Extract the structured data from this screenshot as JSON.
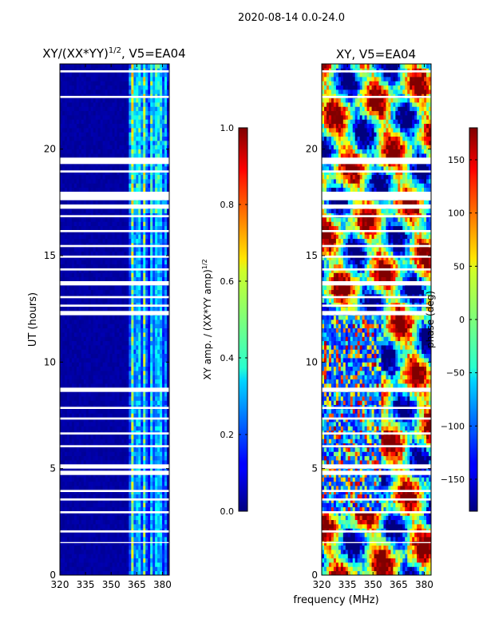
{
  "figure": {
    "suptitle": "2020-08-14 0.0-24.0",
    "xlabel": "frequency (MHz)",
    "ylabel": "UT (hours)"
  },
  "chart_data": [
    {
      "type": "heatmap",
      "title_main": "XY/(XX*YY)",
      "title_exp": "1/2",
      "title_tail": ", V5=EA04",
      "xlim": [
        320,
        384
      ],
      "ylim": [
        0,
        24
      ],
      "xticks": [
        320,
        335,
        350,
        365,
        380
      ],
      "yticks": [
        0,
        5,
        10,
        15,
        20
      ],
      "colormap": "jet",
      "colorbar": {
        "range": [
          0.0,
          1.0
        ],
        "ticks": [
          "0.0",
          "0.2",
          "0.4",
          "0.6",
          "0.8",
          "1.0"
        ],
        "tick_values": [
          0.0,
          0.2,
          0.4,
          0.6,
          0.8,
          1.0
        ],
        "label_main": "XY amp. / (XX*YY amp)",
        "label_exp": "1/2"
      },
      "flagged_hours": [
        [
          19.3,
          19.6
        ],
        [
          18.9,
          19.0
        ],
        [
          17.6,
          18.0
        ],
        [
          17.2,
          17.4
        ],
        [
          16.8,
          16.9
        ],
        [
          22.4,
          22.5
        ],
        [
          23.6,
          23.7
        ],
        [
          16.1,
          16.2
        ],
        [
          15.4,
          15.5
        ],
        [
          14.9,
          15.0
        ],
        [
          14.3,
          14.4
        ],
        [
          13.6,
          13.8
        ],
        [
          13.0,
          13.1
        ],
        [
          12.6,
          12.7
        ],
        [
          12.2,
          12.4
        ],
        [
          8.6,
          8.8
        ],
        [
          7.8,
          7.9
        ],
        [
          7.3,
          7.4
        ],
        [
          6.6,
          6.7
        ],
        [
          6.0,
          6.1
        ],
        [
          5.0,
          5.2
        ],
        [
          4.7,
          4.9
        ],
        [
          3.9,
          4.0
        ],
        [
          3.5,
          3.6
        ],
        [
          2.9,
          3.0
        ],
        [
          2.0,
          2.1
        ],
        [
          1.5,
          1.55
        ]
      ],
      "background_level": 0.02,
      "bright_channels_mhz": [
        {
          "f": 362.5,
          "w": 1.4,
          "amp": 0.55
        },
        {
          "f": 366.0,
          "w": 1.2,
          "amp": 0.45
        },
        {
          "f": 369.5,
          "w": 1.3,
          "amp": 0.5
        },
        {
          "f": 373.5,
          "w": 1.1,
          "amp": 0.4
        },
        {
          "f": 376.0,
          "w": 1.0,
          "amp": 0.35
        },
        {
          "f": 378.5,
          "w": 1.2,
          "amp": 0.45
        },
        {
          "f": 381.5,
          "w": 1.0,
          "amp": 0.3
        }
      ]
    },
    {
      "type": "heatmap",
      "title_main": "XY, V5=EA04",
      "xlim": [
        320,
        384
      ],
      "ylim": [
        0,
        24
      ],
      "xticks": [
        320,
        335,
        350,
        365,
        380
      ],
      "yticks": [
        0,
        5,
        10,
        15,
        20
      ],
      "colormap": "jet",
      "colorbar": {
        "range": [
          -180,
          180
        ],
        "ticks": [
          "−150",
          "−100",
          "−50",
          "0",
          "50",
          "100",
          "150"
        ],
        "tick_values": [
          -150,
          -100,
          -50,
          0,
          50,
          100,
          150
        ],
        "label_main": "phase (deg)"
      },
      "flagged_hours": [
        [
          19.3,
          19.6
        ],
        [
          18.9,
          19.0
        ],
        [
          17.6,
          18.0
        ],
        [
          17.2,
          17.4
        ],
        [
          16.8,
          16.9
        ],
        [
          22.4,
          22.5
        ],
        [
          23.6,
          23.7
        ],
        [
          16.1,
          16.2
        ],
        [
          15.4,
          15.5
        ],
        [
          14.9,
          15.0
        ],
        [
          14.3,
          14.4
        ],
        [
          13.6,
          13.8
        ],
        [
          13.0,
          13.1
        ],
        [
          12.6,
          12.7
        ],
        [
          12.2,
          12.4
        ],
        [
          8.6,
          8.8
        ],
        [
          7.8,
          7.9
        ],
        [
          7.3,
          7.4
        ],
        [
          6.6,
          6.7
        ],
        [
          6.0,
          6.1
        ],
        [
          5.0,
          5.2
        ],
        [
          4.7,
          4.9
        ],
        [
          3.9,
          4.0
        ],
        [
          3.5,
          3.6
        ],
        [
          2.9,
          3.0
        ],
        [
          2.0,
          2.1
        ],
        [
          1.5,
          1.55
        ]
      ]
    }
  ]
}
